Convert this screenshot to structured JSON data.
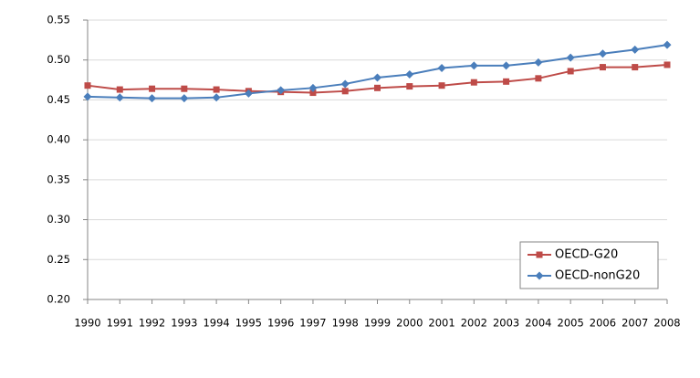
{
  "chart_data": {
    "type": "line",
    "categories": [
      "1990",
      "1991",
      "1992",
      "1993",
      "1994",
      "1995",
      "1996",
      "1997",
      "1998",
      "1999",
      "2000",
      "2001",
      "2002",
      "2003",
      "2004",
      "2005",
      "2006",
      "2007",
      "2008"
    ],
    "series": [
      {
        "name": "OECD-G20",
        "color": "#be4b48",
        "marker": "square",
        "values": [
          0.468,
          0.463,
          0.464,
          0.464,
          0.463,
          0.461,
          0.46,
          0.459,
          0.461,
          0.465,
          0.467,
          0.468,
          0.472,
          0.473,
          0.477,
          0.486,
          0.491,
          0.491,
          0.494
        ]
      },
      {
        "name": "OECD-nonG20",
        "color": "#4a7ebb",
        "marker": "diamond",
        "values": [
          0.454,
          0.453,
          0.452,
          0.452,
          0.453,
          0.458,
          0.462,
          0.465,
          0.47,
          0.478,
          0.482,
          0.49,
          0.493,
          0.493,
          0.497,
          0.503,
          0.508,
          0.513,
          0.519
        ]
      }
    ],
    "ylim": [
      0.2,
      0.55
    ],
    "yticks": [
      {
        "value": 0.2,
        "label": "0.20"
      },
      0.25,
      {
        "value": 0.3,
        "label": "0.30"
      },
      0.35,
      {
        "value": 0.4,
        "label": "0.40"
      },
      0.45,
      {
        "value": 0.5,
        "label": "0.50"
      },
      0.55
    ],
    "grid": true,
    "legend": "lower-right"
  }
}
